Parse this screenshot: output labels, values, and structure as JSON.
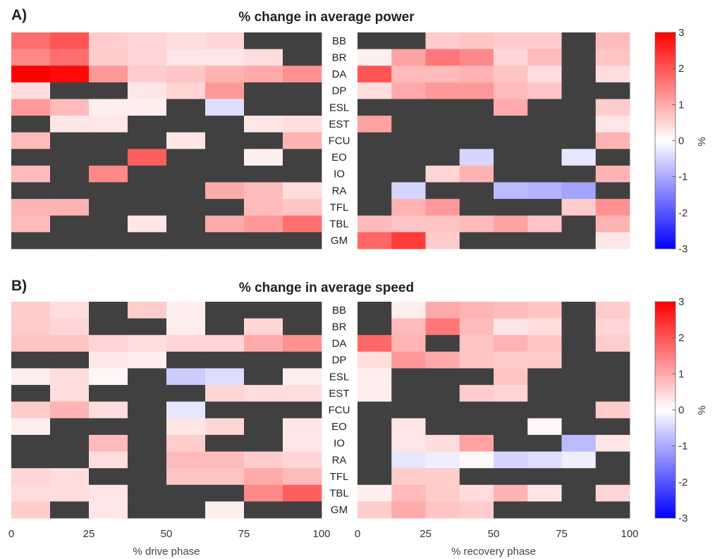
{
  "colormap": {
    "negative_end": "#0000ff",
    "zero": "#ffffff",
    "positive_end": "#ff0000",
    "missing": "#404040"
  },
  "chart_data": [
    {
      "type": "heatmap",
      "panel_letter": "A)",
      "title": "% change in average power",
      "rows": [
        "BB",
        "BR",
        "DA",
        "DP",
        "ESL",
        "EST",
        "FCU",
        "EO",
        "IO",
        "RA",
        "TFL",
        "TBL",
        "GM"
      ],
      "clim": [
        -3,
        3
      ],
      "colorbar_ticks": [
        3,
        2,
        1,
        0,
        -1,
        -2,
        -3
      ],
      "colorbar_label": "%",
      "left": {
        "xlabel": "% drive phase",
        "xlim": [
          0,
          100
        ],
        "xticks": [
          0,
          25,
          50,
          75,
          100
        ],
        "columns": 8,
        "values": [
          [
            1.7,
            2.0,
            0.6,
            0.5,
            0.4,
            0.5,
            null,
            null
          ],
          [
            1.4,
            1.7,
            0.6,
            0.5,
            0.3,
            0.3,
            0.4,
            null
          ],
          [
            3.0,
            2.9,
            1.2,
            0.6,
            0.7,
            0.9,
            1.0,
            1.3
          ],
          [
            0.4,
            null,
            null,
            0.3,
            0.5,
            1.2,
            null,
            null
          ],
          [
            1.2,
            0.8,
            0.2,
            0.2,
            null,
            -0.4,
            null,
            null
          ],
          [
            null,
            0.3,
            0.3,
            null,
            null,
            null,
            0.3,
            0.4
          ],
          [
            0.8,
            null,
            null,
            null,
            0.3,
            null,
            null,
            0.9
          ],
          [
            null,
            null,
            null,
            1.9,
            null,
            null,
            0.2,
            null
          ],
          [
            0.8,
            null,
            1.4,
            null,
            null,
            null,
            null,
            null
          ],
          [
            null,
            null,
            null,
            null,
            null,
            1.0,
            0.8,
            0.4
          ],
          [
            0.9,
            0.9,
            null,
            null,
            null,
            null,
            0.8,
            0.7
          ],
          [
            0.8,
            null,
            null,
            0.3,
            null,
            1.0,
            1.2,
            1.7
          ],
          [
            null,
            null,
            null,
            null,
            null,
            null,
            null,
            null
          ]
        ]
      },
      "right": {
        "xlabel": "% recovery phase",
        "xlim": [
          0,
          100
        ],
        "xticks": [
          0,
          25,
          50,
          75,
          100
        ],
        "columns": 8,
        "values": [
          [
            null,
            null,
            0.6,
            0.7,
            0.6,
            0.6,
            null,
            0.8
          ],
          [
            0.2,
            1.1,
            1.6,
            1.4,
            0.5,
            0.8,
            null,
            0.7
          ],
          [
            2.0,
            0.8,
            0.8,
            0.9,
            0.7,
            0.4,
            null,
            0.4
          ],
          [
            0.4,
            1.0,
            1.2,
            1.2,
            0.8,
            0.7,
            null,
            null
          ],
          [
            null,
            null,
            null,
            null,
            1.0,
            null,
            null,
            0.6
          ],
          [
            1.1,
            null,
            null,
            null,
            null,
            null,
            null,
            0.3
          ],
          [
            null,
            null,
            null,
            null,
            null,
            null,
            null,
            0.9
          ],
          [
            null,
            null,
            null,
            -0.5,
            null,
            null,
            -0.3,
            null
          ],
          [
            null,
            null,
            0.5,
            0.9,
            null,
            null,
            null,
            0.9
          ],
          [
            null,
            -0.5,
            null,
            null,
            -0.8,
            -0.9,
            -1.1,
            null
          ],
          [
            null,
            0.9,
            1.2,
            null,
            null,
            null,
            0.6,
            1.3
          ],
          [
            0.8,
            0.7,
            0.7,
            0.8,
            1.1,
            0.7,
            null,
            0.9
          ],
          [
            1.8,
            2.3,
            0.6,
            null,
            null,
            null,
            null,
            0.3
          ]
        ]
      }
    },
    {
      "type": "heatmap",
      "panel_letter": "B)",
      "title": "% change in average speed",
      "rows": [
        "BB",
        "BR",
        "DA",
        "DP",
        "ESL",
        "EST",
        "FCU",
        "EO",
        "IO",
        "RA",
        "TFL",
        "TBL",
        "GM"
      ],
      "clim": [
        -3,
        3
      ],
      "colorbar_ticks": [
        3,
        2,
        1,
        0,
        -1,
        -2,
        -3
      ],
      "colorbar_label": "%",
      "left": {
        "xlabel": "% drive phase",
        "xlim": [
          0,
          100
        ],
        "xticks": [
          0,
          25,
          50,
          75,
          100
        ],
        "columns": 8,
        "values": [
          [
            0.6,
            0.4,
            null,
            0.6,
            0.2,
            null,
            null,
            null
          ],
          [
            0.6,
            0.5,
            null,
            null,
            0.2,
            null,
            0.5,
            null
          ],
          [
            0.7,
            0.7,
            0.5,
            0.4,
            0.5,
            0.5,
            1.0,
            1.3
          ],
          [
            null,
            null,
            0.3,
            0.2,
            null,
            null,
            null,
            null
          ],
          [
            0.2,
            0.4,
            0.1,
            null,
            -0.6,
            -0.4,
            null,
            0.2
          ],
          [
            null,
            0.4,
            null,
            null,
            null,
            0.5,
            0.4,
            0.4
          ],
          [
            0.6,
            0.9,
            0.4,
            null,
            -0.3,
            null,
            null,
            null
          ],
          [
            0.2,
            null,
            null,
            null,
            0.3,
            0.5,
            null,
            0.3
          ],
          [
            null,
            null,
            0.8,
            null,
            0.6,
            null,
            null,
            0.3
          ],
          [
            null,
            null,
            0.4,
            null,
            0.8,
            0.8,
            0.6,
            0.5
          ],
          [
            0.5,
            0.4,
            null,
            null,
            0.7,
            0.7,
            1.0,
            0.8
          ],
          [
            0.4,
            0.4,
            0.3,
            null,
            null,
            null,
            1.4,
            1.9
          ],
          [
            0.6,
            null,
            0.3,
            null,
            null,
            0.2,
            null,
            null
          ]
        ]
      },
      "right": {
        "xlabel": "% recovery phase",
        "xlim": [
          0,
          100
        ],
        "xticks": [
          0,
          25,
          50,
          75,
          100
        ],
        "columns": 8,
        "values": [
          [
            null,
            0.2,
            1.0,
            0.9,
            0.8,
            0.7,
            null,
            0.6
          ],
          [
            null,
            0.8,
            1.6,
            0.8,
            0.3,
            0.4,
            null,
            0.5
          ],
          [
            1.8,
            0.9,
            null,
            0.7,
            0.9,
            0.7,
            null,
            0.6
          ],
          [
            0.4,
            1.2,
            1.0,
            0.7,
            0.6,
            0.6,
            null,
            null
          ],
          [
            0.2,
            null,
            null,
            null,
            0.7,
            null,
            null,
            null
          ],
          [
            0.2,
            null,
            null,
            0.6,
            0.5,
            null,
            null,
            null
          ],
          [
            null,
            null,
            null,
            null,
            null,
            null,
            null,
            0.6
          ],
          [
            null,
            0.3,
            null,
            null,
            null,
            0.1,
            null,
            null
          ],
          [
            null,
            0.3,
            0.4,
            1.1,
            null,
            null,
            -0.8,
            0.3
          ],
          [
            null,
            -0.3,
            -0.2,
            0.1,
            -0.5,
            -0.4,
            -0.2,
            null
          ],
          [
            null,
            0.6,
            0.6,
            null,
            null,
            null,
            null,
            null
          ],
          [
            0.2,
            0.8,
            0.6,
            0.4,
            0.9,
            0.3,
            null,
            0.5
          ],
          [
            0.6,
            1.0,
            0.7,
            0.6,
            null,
            null,
            null,
            null
          ]
        ]
      }
    }
  ]
}
